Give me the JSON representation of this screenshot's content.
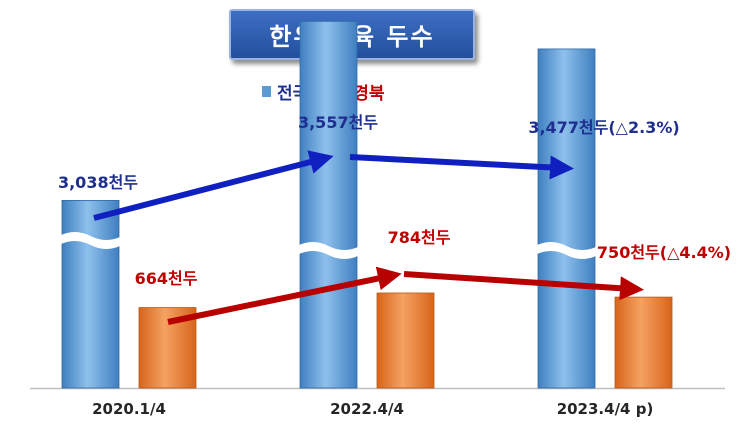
{
  "title": "한우 사육 두수",
  "colors": {
    "national": "#5b9bd5",
    "gyeongbuk": "#ed7d31",
    "national_label": "#1f2f8f",
    "gyeongbuk_label": "#c00000",
    "national_arrow": "#1020c0",
    "gyeongbuk_arrow": "#b80000"
  },
  "chart_data": {
    "type": "bar",
    "title": "한우 사육 두수",
    "categories": [
      "2020.1/4",
      "2022.4/4",
      "2023.4/4 p)"
    ],
    "series": [
      {
        "name": "전국",
        "values": [
          3038,
          3557,
          3477
        ],
        "labels": [
          "3,038천두",
          "3,557천두",
          "3,477천두(△2.3%)"
        ]
      },
      {
        "name": "경북",
        "values": [
          664,
          784,
          750
        ],
        "labels": [
          "664천두",
          "784천두",
          "750천두(△4.4%)"
        ]
      }
    ],
    "axis_break": true,
    "legend": "top-center",
    "grid": false,
    "annotations": [
      "trend arrows connect each series across periods"
    ]
  }
}
